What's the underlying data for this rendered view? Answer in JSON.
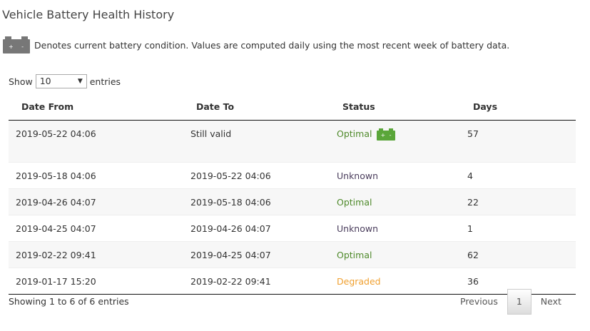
{
  "title": "Vehicle Battery Health History",
  "legend_text": "Denotes current battery condition. Values are computed daily using the most recent week of battery data.",
  "length": {
    "show": "Show",
    "value": "10",
    "entries": "entries"
  },
  "columns": [
    "Date From",
    "Date To",
    "Status",
    "Days"
  ],
  "rows": [
    {
      "from": "2019-05-22 04:06",
      "to": "Still valid",
      "status": "Optimal",
      "days": "57",
      "current": true
    },
    {
      "from": "2019-05-18 04:06",
      "to": "2019-05-22 04:06",
      "status": "Unknown",
      "days": "4"
    },
    {
      "from": "2019-04-26 04:07",
      "to": "2019-05-18 04:06",
      "status": "Optimal",
      "days": "22"
    },
    {
      "from": "2019-04-25 04:07",
      "to": "2019-04-26 04:07",
      "status": "Unknown",
      "days": "1"
    },
    {
      "from": "2019-02-22 09:41",
      "to": "2019-04-25 04:07",
      "status": "Optimal",
      "days": "62"
    },
    {
      "from": "2019-01-17 15:20",
      "to": "2019-02-22 09:41",
      "status": "Degraded",
      "days": "36"
    }
  ],
  "info": "Showing 1 to 6 of 6 entries",
  "pagination": {
    "previous": "Previous",
    "page": "1",
    "next": "Next"
  },
  "colors": {
    "Optimal": "#4f8a2b",
    "Unknown": "#4a3d5c",
    "Degraded": "#f0a030",
    "battery_current": "#5aa63a",
    "battery_legend": "#777777"
  },
  "icons": {
    "battery": "+ -"
  }
}
